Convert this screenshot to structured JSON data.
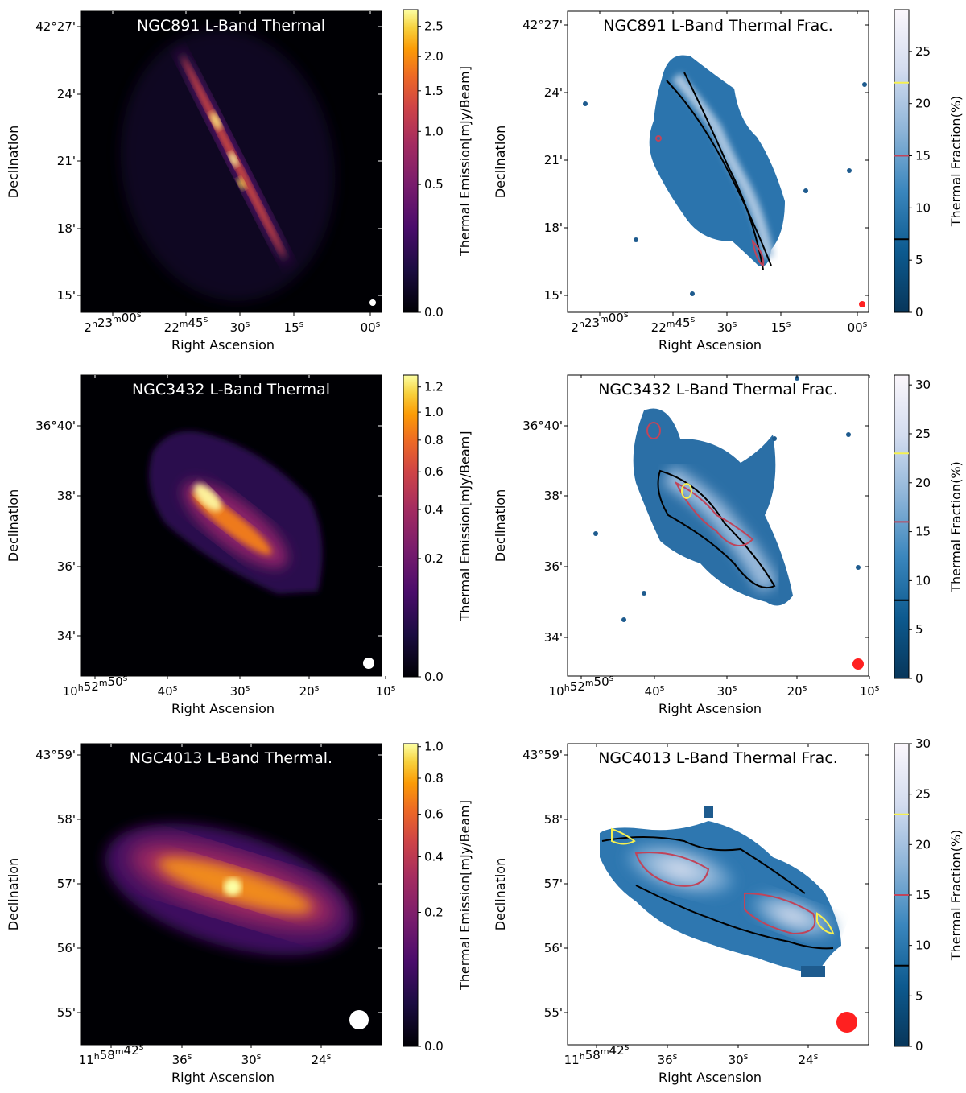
{
  "figure": {
    "panels": [
      {
        "title": "NGC891 L-Band Thermal",
        "kind": "emission",
        "xlabel": "Right Ascension",
        "ylabel": "Declination",
        "colorbar_label": "Thermal Emission[mJy/Beam]",
        "ra_ticks": [
          {
            "h": "2",
            "m": "23",
            "s": "00"
          },
          {
            "h": "",
            "m": "22",
            "s": "45"
          },
          {
            "h": "",
            "m": "",
            "s": "30"
          },
          {
            "h": "",
            "m": "",
            "s": "15"
          },
          {
            "h": "",
            "m": "",
            "s": "00"
          }
        ],
        "dec_ticks": [
          "42°27'",
          "24'",
          "21'",
          "18'",
          "15'"
        ],
        "colorbar_ticks": [
          "2.5",
          "2.0",
          "1.5",
          "1.0",
          "0.5",
          "0.0"
        ]
      },
      {
        "title": "NGC891 L-Band Thermal Frac.",
        "kind": "fraction",
        "xlabel": "Right Ascension",
        "ylabel": "Declination",
        "colorbar_label": "Thermal Fraction(%)",
        "ra_ticks": [
          {
            "h": "2",
            "m": "23",
            "s": "00"
          },
          {
            "h": "",
            "m": "22",
            "s": "45"
          },
          {
            "h": "",
            "m": "",
            "s": "30"
          },
          {
            "h": "",
            "m": "",
            "s": "15"
          },
          {
            "h": "",
            "m": "",
            "s": "00"
          }
        ],
        "dec_ticks": [
          "42°27'",
          "24'",
          "21'",
          "18'",
          "15'"
        ],
        "colorbar_ticks": [
          "25",
          "20",
          "15",
          "10",
          "5",
          "0"
        ],
        "contour_levels": [
          7,
          15,
          22
        ]
      },
      {
        "title": "NGC3432 L-Band Thermal",
        "kind": "emission",
        "xlabel": "Right Ascension",
        "ylabel": "Declination",
        "colorbar_label": "Thermal Emission[mJy/Beam]",
        "ra_ticks": [
          {
            "h": "10",
            "m": "52",
            "s": "50"
          },
          {
            "h": "",
            "m": "",
            "s": "40"
          },
          {
            "h": "",
            "m": "",
            "s": "30"
          },
          {
            "h": "",
            "m": "",
            "s": "20"
          },
          {
            "h": "",
            "m": "",
            "s": "10"
          }
        ],
        "dec_ticks": [
          "36°40'",
          "38'",
          "36'",
          "34'"
        ],
        "colorbar_ticks": [
          "1.2",
          "1.0",
          "0.8",
          "0.6",
          "0.4",
          "0.2",
          "0.0"
        ]
      },
      {
        "title": "NGC3432 L-Band Thermal Frac.",
        "kind": "fraction",
        "xlabel": "Right Ascension",
        "ylabel": "Declination",
        "colorbar_label": "Thermal Fraction(%)",
        "ra_ticks": [
          {
            "h": "10",
            "m": "52",
            "s": "50"
          },
          {
            "h": "",
            "m": "",
            "s": "40"
          },
          {
            "h": "",
            "m": "",
            "s": "30"
          },
          {
            "h": "",
            "m": "",
            "s": "20"
          },
          {
            "h": "",
            "m": "",
            "s": "10"
          }
        ],
        "dec_ticks": [
          "36°40'",
          "38'",
          "36'",
          "34'"
        ],
        "colorbar_ticks": [
          "30",
          "25",
          "20",
          "15",
          "10",
          "5",
          "0"
        ],
        "contour_levels": [
          8,
          16,
          23
        ]
      },
      {
        "title": "NGC4013 L-Band Thermal.",
        "kind": "emission",
        "xlabel": "Right Ascension",
        "ylabel": "Declination",
        "colorbar_label": "Thermal Emission[mJy/Beam]",
        "ra_ticks": [
          {
            "h": "11",
            "m": "58",
            "s": "42"
          },
          {
            "h": "",
            "m": "",
            "s": "36"
          },
          {
            "h": "",
            "m": "",
            "s": "30"
          },
          {
            "h": "",
            "m": "",
            "s": "24"
          }
        ],
        "dec_ticks": [
          "43°59'",
          "58'",
          "57'",
          "56'",
          "55'"
        ],
        "colorbar_ticks": [
          "1.0",
          "0.8",
          "0.6",
          "0.4",
          "0.2",
          "0.0"
        ]
      },
      {
        "title": "NGC4013 L-Band Thermal Frac.",
        "kind": "fraction",
        "xlabel": "Right Ascension",
        "ylabel": "Declination",
        "colorbar_label": "Thermal Fraction(%)",
        "ra_ticks": [
          {
            "h": "11",
            "m": "58",
            "s": "42"
          },
          {
            "h": "",
            "m": "",
            "s": "36"
          },
          {
            "h": "",
            "m": "",
            "s": "30"
          },
          {
            "h": "",
            "m": "",
            "s": "24"
          }
        ],
        "dec_ticks": [
          "43°59'",
          "58'",
          "57'",
          "56'",
          "55'"
        ],
        "colorbar_ticks": [
          "30",
          "25",
          "20",
          "15",
          "10",
          "5",
          "0"
        ],
        "contour_levels": [
          8,
          15,
          23
        ]
      }
    ]
  },
  "chart_data": [
    {
      "type": "heatmap",
      "title": "NGC891 L-Band Thermal",
      "xlabel": "Right Ascension",
      "ylabel": "Declination",
      "colorbar": {
        "label": "Thermal Emission[mJy/Beam]",
        "range": [
          0.0,
          2.8
        ],
        "ticks": [
          0.0,
          0.5,
          1.0,
          1.5,
          2.0,
          2.5
        ],
        "cmap": "inferno"
      },
      "x_ticks": [
        "2h23m00s",
        "22m45s",
        "30s",
        "15s",
        "00s"
      ],
      "y_ticks": [
        "42°27'",
        "24'",
        "21'",
        "18'",
        "15'"
      ]
    },
    {
      "type": "heatmap",
      "title": "NGC891 L-Band Thermal Frac.",
      "xlabel": "Right Ascension",
      "ylabel": "Declination",
      "colorbar": {
        "label": "Thermal Fraction(%)",
        "range": [
          0,
          29
        ],
        "ticks": [
          0,
          5,
          10,
          15,
          20,
          25
        ],
        "cmap": "blue-white"
      },
      "contours": [
        {
          "level": 7,
          "color": "#000000"
        },
        {
          "level": 15,
          "color": "#c0445a"
        },
        {
          "level": 22,
          "color": "#f6f050"
        }
      ],
      "x_ticks": [
        "2h23m00s",
        "22m45s",
        "30s",
        "15s",
        "00s"
      ],
      "y_ticks": [
        "42°27'",
        "24'",
        "21'",
        "18'",
        "15'"
      ]
    },
    {
      "type": "heatmap",
      "title": "NGC3432 L-Band Thermal",
      "xlabel": "Right Ascension",
      "ylabel": "Declination",
      "colorbar": {
        "label": "Thermal Emission[mJy/Beam]",
        "range": [
          0.0,
          1.3
        ],
        "ticks": [
          0.0,
          0.2,
          0.4,
          0.6,
          0.8,
          1.0,
          1.2
        ],
        "cmap": "inferno"
      },
      "x_ticks": [
        "10h52m50s",
        "40s",
        "30s",
        "20s",
        "10s"
      ],
      "y_ticks": [
        "36°40'",
        "38'",
        "36'",
        "34'"
      ]
    },
    {
      "type": "heatmap",
      "title": "NGC3432 L-Band Thermal Frac.",
      "xlabel": "Right Ascension",
      "ylabel": "Declination",
      "colorbar": {
        "label": "Thermal Fraction(%)",
        "range": [
          0,
          31
        ],
        "ticks": [
          0,
          5,
          10,
          15,
          20,
          25,
          30
        ],
        "cmap": "blue-white"
      },
      "contours": [
        {
          "level": 8,
          "color": "#000000"
        },
        {
          "level": 16,
          "color": "#c0445a"
        },
        {
          "level": 23,
          "color": "#f6f050"
        }
      ],
      "x_ticks": [
        "10h52m50s",
        "40s",
        "30s",
        "20s",
        "10s"
      ],
      "y_ticks": [
        "36°40'",
        "38'",
        "36'",
        "34'"
      ]
    },
    {
      "type": "heatmap",
      "title": "NGC4013 L-Band Thermal.",
      "xlabel": "Right Ascension",
      "ylabel": "Declination",
      "colorbar": {
        "label": "Thermal Emission[mJy/Beam]",
        "range": [
          0.0,
          1.02
        ],
        "ticks": [
          0.0,
          0.2,
          0.4,
          0.6,
          0.8,
          1.0
        ],
        "cmap": "inferno"
      },
      "x_ticks": [
        "11h58m42s",
        "36s",
        "30s",
        "24s"
      ],
      "y_ticks": [
        "43°59'",
        "58'",
        "57'",
        "56'",
        "55'"
      ]
    },
    {
      "type": "heatmap",
      "title": "NGC4013 L-Band Thermal Frac.",
      "xlabel": "Right Ascension",
      "ylabel": "Declination",
      "colorbar": {
        "label": "Thermal Fraction(%)",
        "range": [
          0,
          30
        ],
        "ticks": [
          0,
          5,
          10,
          15,
          20,
          25,
          30
        ],
        "cmap": "blue-white"
      },
      "contours": [
        {
          "level": 8,
          "color": "#000000"
        },
        {
          "level": 15,
          "color": "#c0445a"
        },
        {
          "level": 23,
          "color": "#f6f050"
        }
      ],
      "x_ticks": [
        "11h58m42s",
        "36s",
        "30s",
        "24s"
      ],
      "y_ticks": [
        "43°59'",
        "58'",
        "57'",
        "56'",
        "55'"
      ]
    }
  ]
}
